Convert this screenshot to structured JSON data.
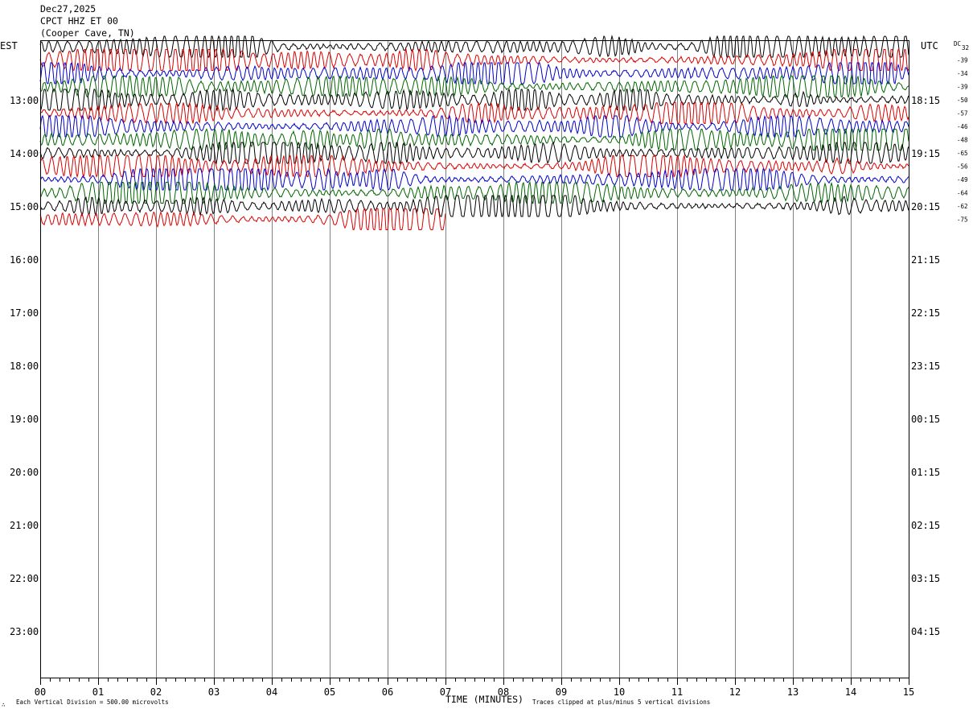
{
  "header": {
    "date": "Dec27,2025",
    "station": "CPCT HHZ ET 00",
    "location": "(Cooper Cave, TN)"
  },
  "left_zone_label": "EST",
  "right_zone_label": "UTC",
  "dc_label": "DC",
  "footer": {
    "scale_note": "Each Vertical Division =  500.00 microvolts",
    "xaxis_title": "TIME (MINUTES)",
    "clip_note": "Traces clipped at plus/minus 5 vertical divisions"
  },
  "chart_data": {
    "type": "line",
    "title": "",
    "xlabel": "TIME (MINUTES)",
    "ylabel": "",
    "xlim": [
      0,
      15
    ],
    "x_tick_labels": [
      "00",
      "01",
      "02",
      "03",
      "04",
      "05",
      "06",
      "07",
      "08",
      "09",
      "10",
      "11",
      "12",
      "13",
      "14",
      "15"
    ],
    "left_time_labels": [
      "13:00",
      "14:00",
      "15:00",
      "16:00",
      "17:00",
      "18:00",
      "19:00",
      "20:00",
      "21:00",
      "22:00",
      "23:00"
    ],
    "right_time_labels": [
      "18:15",
      "19:15",
      "20:15",
      "21:15",
      "22:15",
      "23:15",
      "00:15",
      "01:15",
      "02:15",
      "03:15",
      "04:15"
    ],
    "dc_offsets": [
      "32",
      "-39",
      "-34",
      "-39",
      "-50",
      "-57",
      "-46",
      "-48",
      "-65",
      "-56",
      "-49",
      "-64",
      "-62",
      "-75"
    ],
    "trace_colors": [
      "#000000",
      "#dd0000",
      "#0000cc",
      "#006600"
    ],
    "trace_rows": 14,
    "last_row_end_minute": 7.0,
    "grid": true,
    "grid_color": "#808080"
  }
}
